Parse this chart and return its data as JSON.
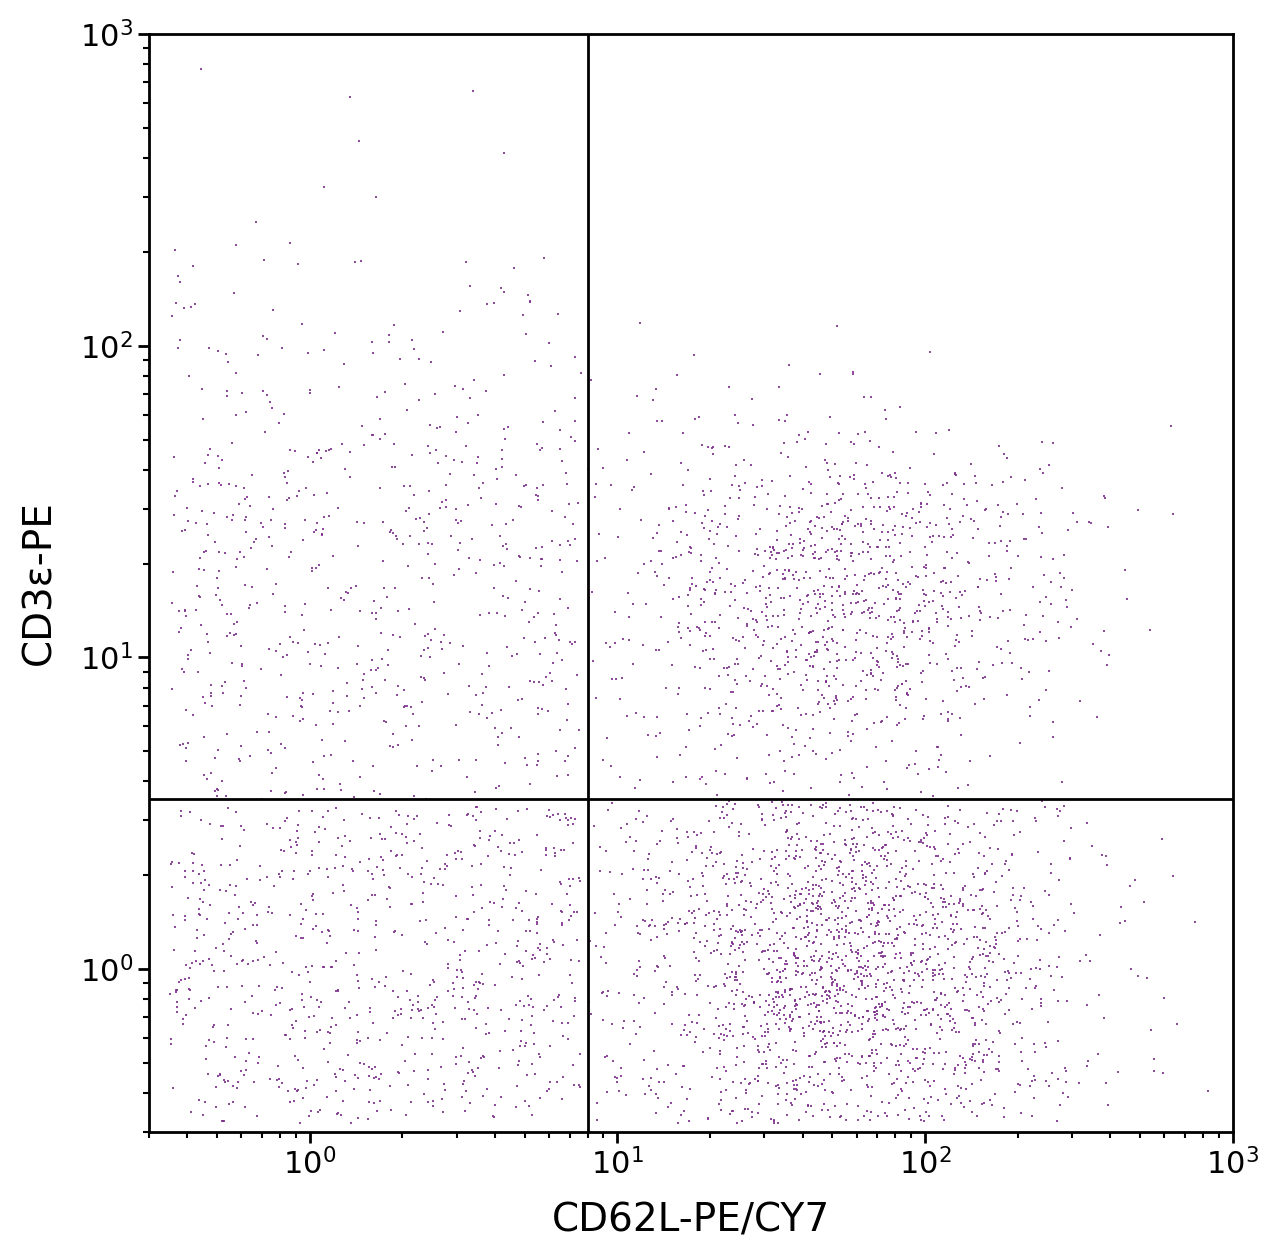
{
  "xlabel": "CD62L-PE/CY7",
  "ylabel": "CD3ε-PE",
  "xlim": [
    0.3,
    1000
  ],
  "ylim": [
    0.3,
    1000
  ],
  "gate_x": 8.0,
  "gate_y": 3.5,
  "background_color": "#ffffff",
  "tick_fontsize": 22,
  "label_fontsize": 28,
  "seed": 42,
  "n_Q1": 700,
  "n_Q2": 1200,
  "n_Q3": 800,
  "n_Q4": 2000,
  "scatter_color": "#7B2D8B",
  "dot_size": 3,
  "dot_alpha": 0.85
}
